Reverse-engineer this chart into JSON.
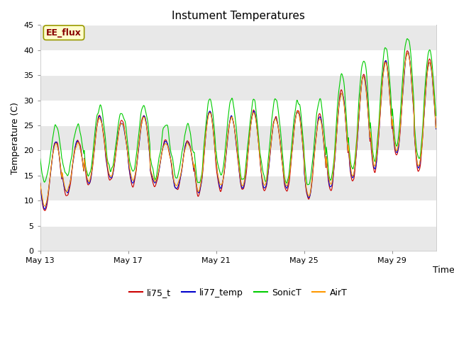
{
  "title": "Instument Temperatures",
  "ylabel": "Temperature (C)",
  "xlabel": "Time",
  "ylim": [
    0,
    45
  ],
  "yticks": [
    0,
    5,
    10,
    15,
    20,
    25,
    30,
    35,
    40,
    45
  ],
  "xtick_labels": [
    "May 13",
    "May 17",
    "May 21",
    "May 25",
    "May 29"
  ],
  "xtick_days": [
    0,
    4,
    8,
    12,
    16
  ],
  "series": [
    "li75_t",
    "li77_temp",
    "SonicT",
    "AirT"
  ],
  "colors": [
    "#cc0000",
    "#0000cc",
    "#00cc00",
    "#ff9900"
  ],
  "background_color": "#ffffff",
  "plot_bg_color": "#e8e8e8",
  "band_color_light": "#ffffff",
  "ee_flux_label": "EE_flux",
  "ee_flux_bg": "#ffffcc",
  "ee_flux_text_color": "#880000",
  "ee_flux_border_color": "#999900",
  "total_days": 18,
  "points_per_day": 48,
  "day_peaks": [
    22,
    22,
    27,
    26,
    27,
    22,
    22,
    28,
    27,
    28,
    27,
    28,
    27,
    32,
    35,
    38,
    40,
    38,
    37
  ],
  "day_troughs": [
    8,
    11,
    13,
    14,
    13,
    13,
    12,
    11,
    12,
    12,
    12,
    12,
    10,
    12,
    14,
    16,
    19,
    16,
    15
  ],
  "sonic_peak_extra": [
    3,
    3,
    2,
    2,
    2,
    3,
    3,
    2,
    3,
    2,
    3,
    2,
    3,
    3,
    3,
    3,
    3,
    2,
    2
  ],
  "sonic_trough_extra": [
    6,
    4,
    2,
    2,
    3,
    2,
    3,
    2,
    3,
    2,
    2,
    2,
    3,
    2,
    2,
    2,
    2,
    2,
    2
  ],
  "air_peak_offset": [
    -0.5,
    -0.5,
    -0.5,
    -0.5,
    -0.5,
    -0.5,
    -0.5,
    -0.5,
    -0.5,
    -0.5,
    -0.5,
    -0.5,
    -0.5,
    -0.5,
    -0.5,
    -0.5,
    -0.5,
    -0.5,
    -0.5
  ],
  "air_trough_offset": [
    1,
    1,
    1,
    1,
    1,
    1,
    1,
    1,
    1,
    1,
    1,
    1,
    1,
    1,
    1,
    1,
    1,
    1,
    1
  ]
}
